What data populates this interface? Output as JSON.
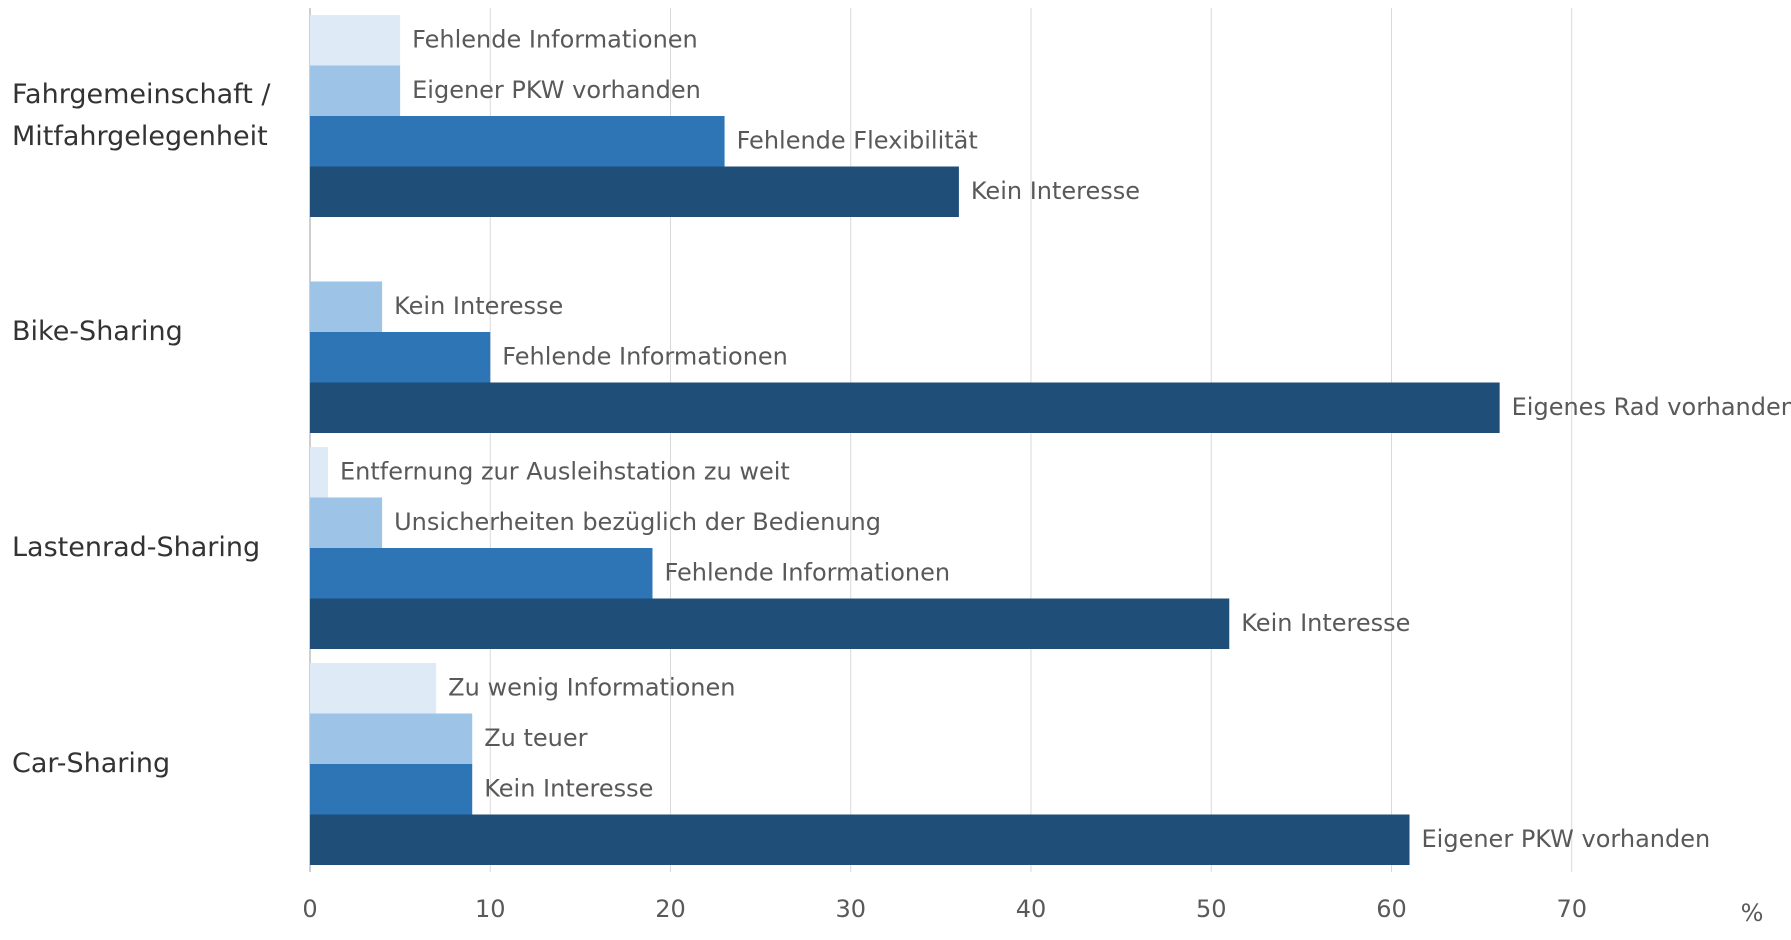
{
  "chart_data": {
    "type": "grouped-horizontal-bar",
    "slot_colors": [
      "#deebf7",
      "#9dc3e6",
      "#2e75b6",
      "#1f4e79"
    ],
    "groups": [
      {
        "name": "Fahrgemeinschaft /\nMitfahrgelegenheit",
        "bars": [
          {
            "label": "Fehlende Informationen",
            "value": 5
          },
          {
            "label": "Eigener PKW vorhanden",
            "value": 5
          },
          {
            "label": "Fehlende Flexibilität",
            "value": 23
          },
          {
            "label": "Kein Interesse",
            "value": 36
          }
        ]
      },
      {
        "name": "Bike-Sharing",
        "bars": [
          {
            "label": "Kein Interesse",
            "value": 4
          },
          {
            "label": "Fehlende Informationen",
            "value": 10
          },
          {
            "label": "Eigenes Rad vorhanden",
            "value": 66
          }
        ]
      },
      {
        "name": "Lastenrad-Sharing",
        "bars": [
          {
            "label": "Entfernung zur Ausleihstation zu weit",
            "value": 1
          },
          {
            "label": "Unsicherheiten bezüglich der Bedienung",
            "value": 4
          },
          {
            "label": "Fehlende Informationen",
            "value": 19
          },
          {
            "label": "Kein Interesse",
            "value": 51
          }
        ]
      },
      {
        "name": "Car-Sharing",
        "bars": [
          {
            "label": "Zu wenig Informationen",
            "value": 7
          },
          {
            "label": "Zu teuer",
            "value": 9
          },
          {
            "label": "Kein Interesse",
            "value": 9
          },
          {
            "label": "Eigener PKW vorhanden",
            "value": 61
          }
        ]
      }
    ],
    "xlim": [
      0,
      80
    ],
    "xticks": [
      0,
      10,
      20,
      30,
      40,
      50,
      60,
      70
    ],
    "x_unit": "%",
    "grid": true
  }
}
